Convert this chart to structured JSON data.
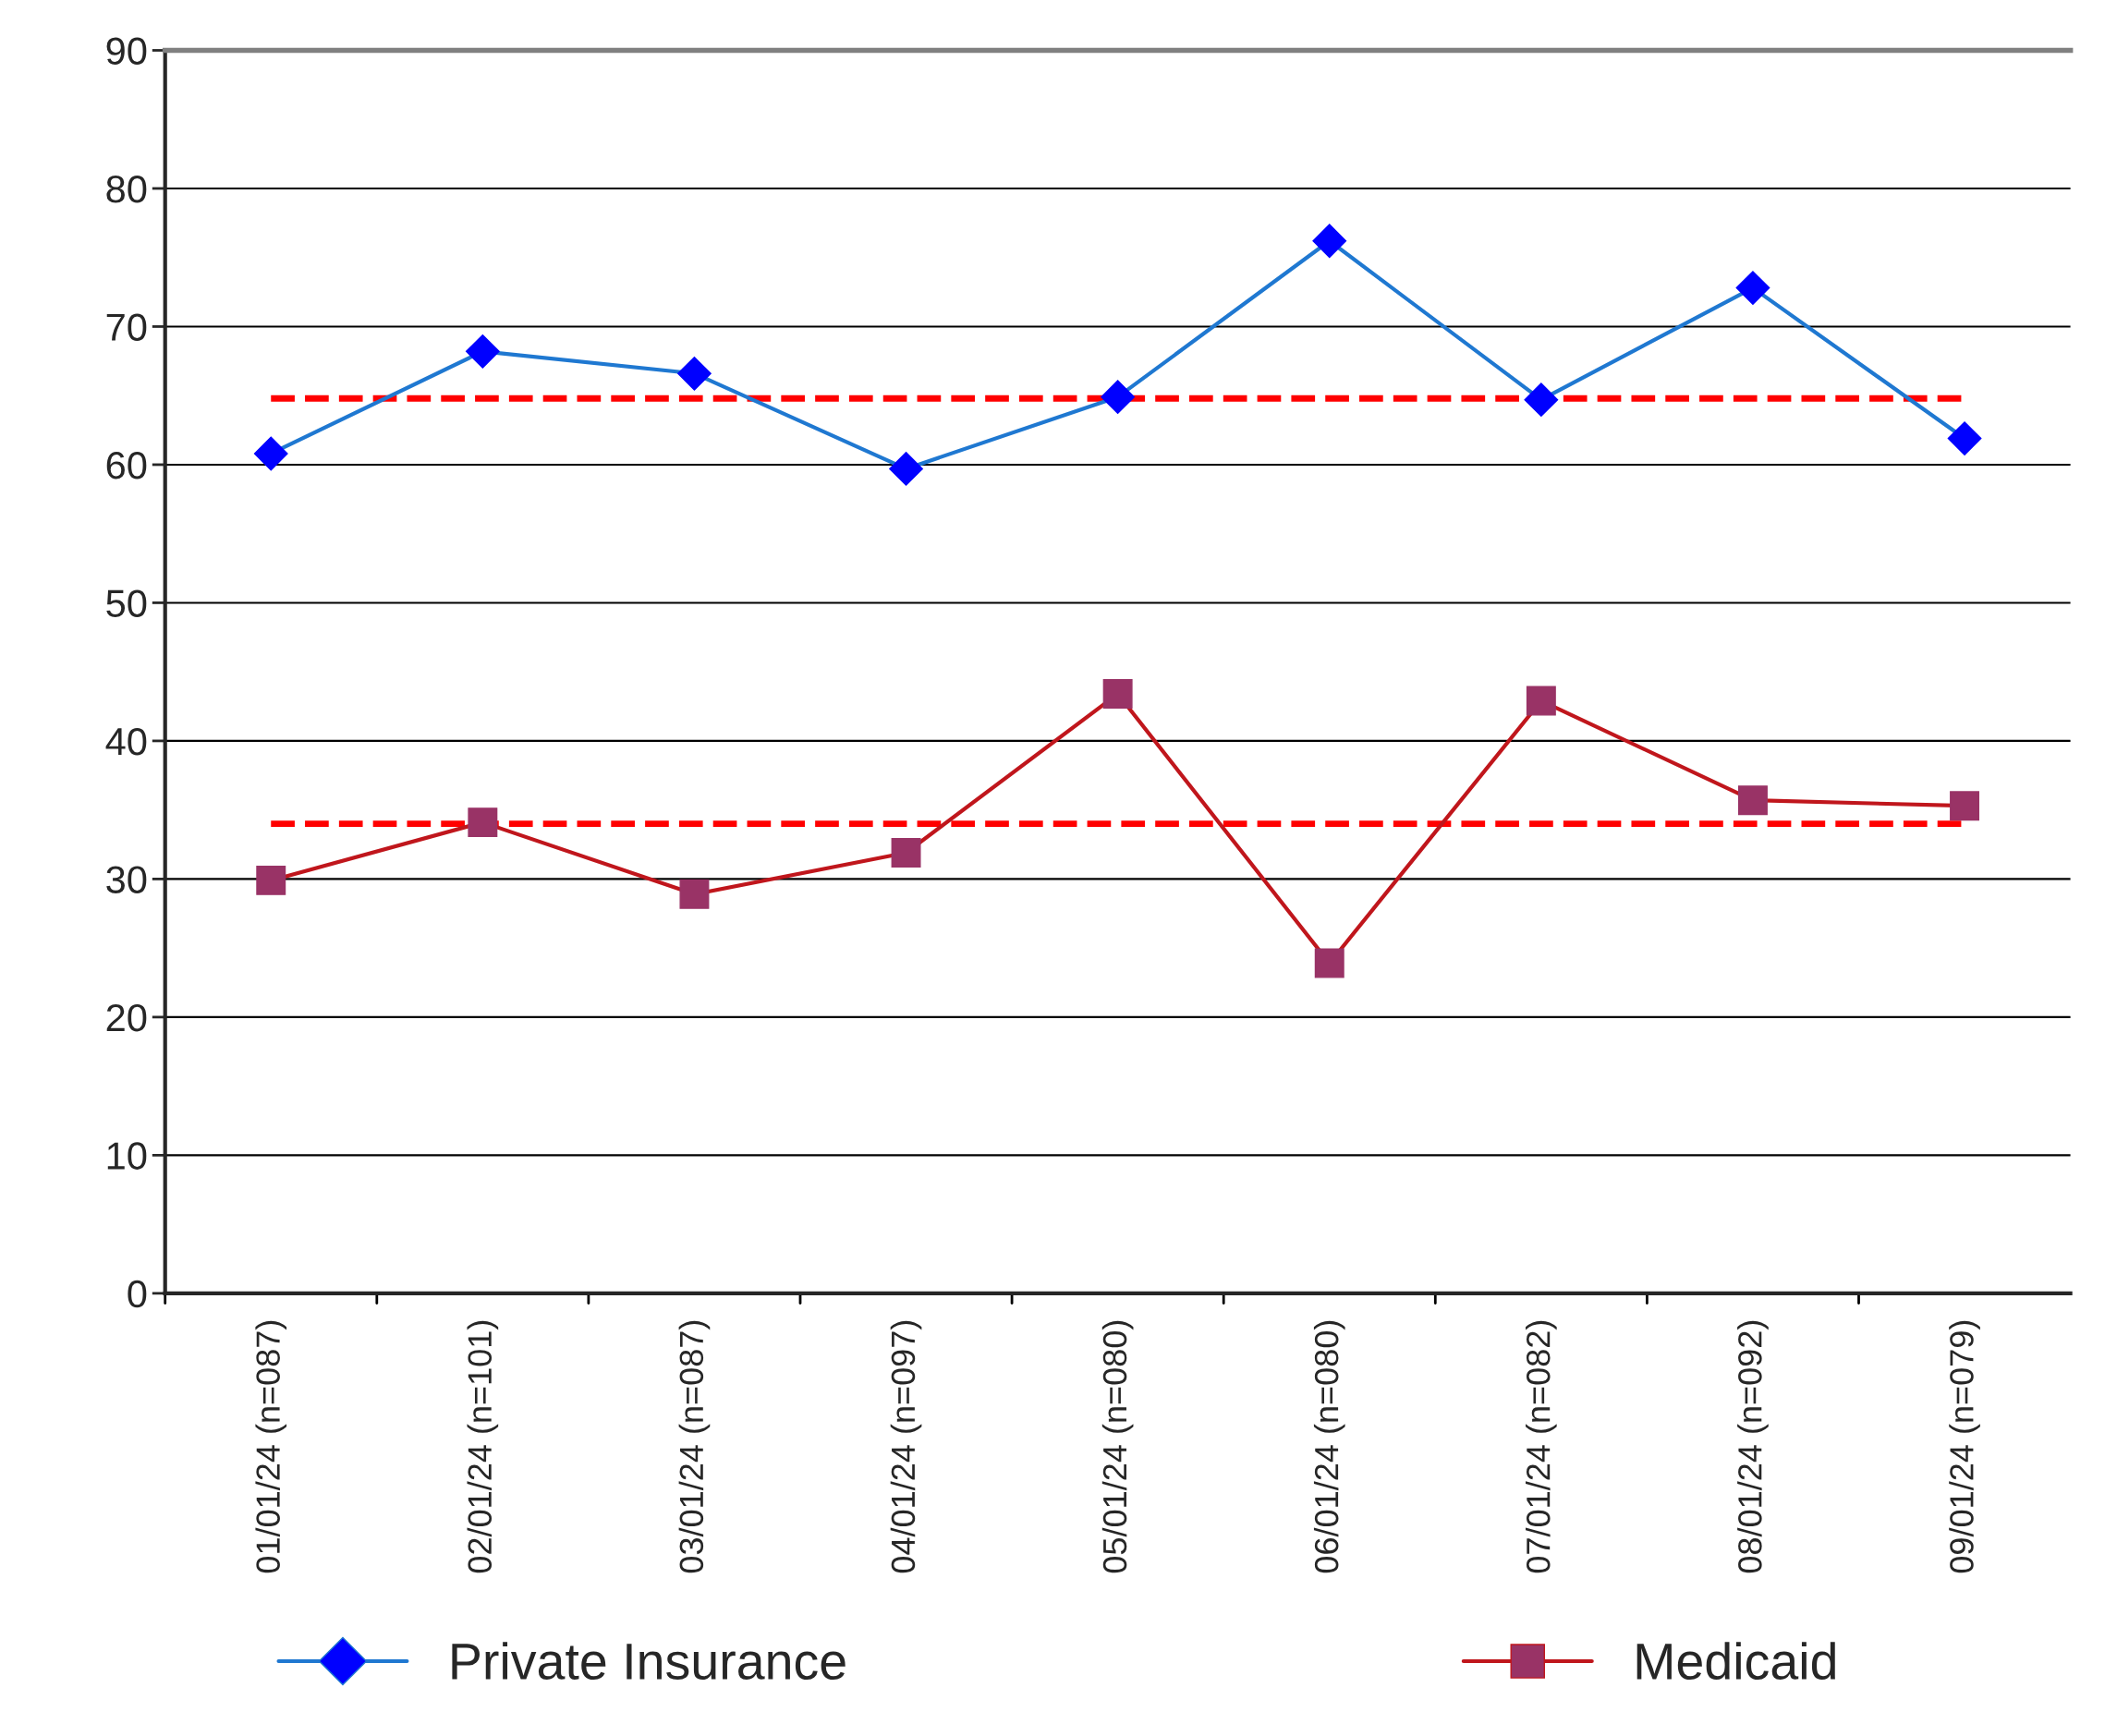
{
  "chart_data": {
    "type": "line",
    "categories": [
      "01/01/24 (n=087)",
      "02/01/24 (n=101)",
      "03/01/24 (n=087)",
      "04/01/24 (n=097)",
      "05/01/24 (n=080)",
      "06/01/24 (n=080)",
      "07/01/24 (n=082)",
      "08/01/24 (n=092)",
      "09/01/24 (n=079)"
    ],
    "series": [
      {
        "name": "Private Insurance",
        "color": "#1f78d1",
        "marker": "diamond",
        "values": [
          60.8,
          68.2,
          66.6,
          59.7,
          64.9,
          76.2,
          64.7,
          72.8,
          61.9
        ]
      },
      {
        "name": "Medicaid",
        "color": "#c0161c",
        "marker": "square",
        "values": [
          29.9,
          34.1,
          28.9,
          31.9,
          43.4,
          23.9,
          42.9,
          35.7,
          35.3
        ]
      }
    ],
    "ref_lines": [
      {
        "axis": "y",
        "value": 64.8,
        "color": "#ff0000",
        "line_style": "dashed"
      },
      {
        "axis": "y",
        "value": 34.0,
        "color": "#ff0000",
        "line_style": "dashed"
      }
    ],
    "ylim": [
      0,
      90
    ],
    "yticks": [
      0,
      10,
      20,
      30,
      40,
      50,
      60,
      70,
      80,
      90
    ],
    "grid": "y",
    "legend": "bottom",
    "line_style": "solid"
  }
}
